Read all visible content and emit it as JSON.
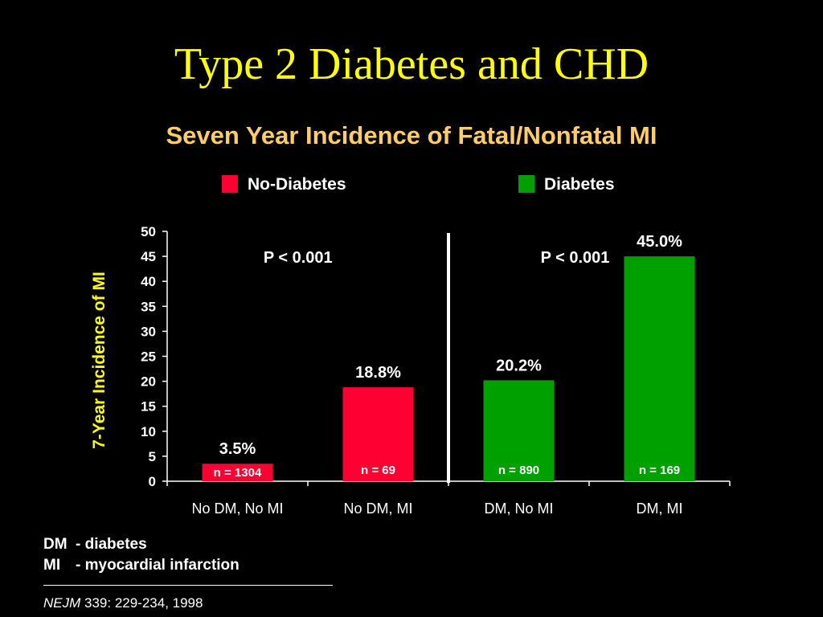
{
  "slide": {
    "title": "Type 2 Diabetes and CHD",
    "subtitle": "Seven Year Incidence of Fatal/Nonfatal MI"
  },
  "legend": [
    {
      "label": "No-Diabetes",
      "color": "#ff0033"
    },
    {
      "label": "Diabetes",
      "color": "#00a000"
    }
  ],
  "chart_data": {
    "type": "bar",
    "categories": [
      "No DM, No MI",
      "No DM, MI",
      "DM, No MI",
      "DM, MI"
    ],
    "values": [
      3.5,
      18.8,
      20.2,
      45.0
    ],
    "value_labels": [
      "3.5%",
      "18.8%",
      "20.2%",
      "45.0%"
    ],
    "n_labels": [
      "n = 1304",
      "n = 69",
      "n = 890",
      "n = 169"
    ],
    "groups": [
      "No-Diabetes",
      "No-Diabetes",
      "Diabetes",
      "Diabetes"
    ],
    "colors": [
      "#ff0033",
      "#ff0033",
      "#00a000",
      "#00a000"
    ],
    "ylabel": "7-Year Incidence of MI",
    "xlabel": "",
    "ylim": [
      0,
      50
    ],
    "yticks": [
      0,
      5,
      10,
      15,
      20,
      25,
      30,
      35,
      40,
      45,
      50
    ],
    "annotations": [
      "P < 0.001",
      "P < 0.001"
    ],
    "grid": false
  },
  "notes": {
    "dm_key": "DM",
    "dm_text": "- diabetes",
    "mi_key": "MI",
    "mi_text": "- myocardial infarction"
  },
  "citation": {
    "journal": "NEJM",
    "details": " 339: 229-234, 1998"
  }
}
